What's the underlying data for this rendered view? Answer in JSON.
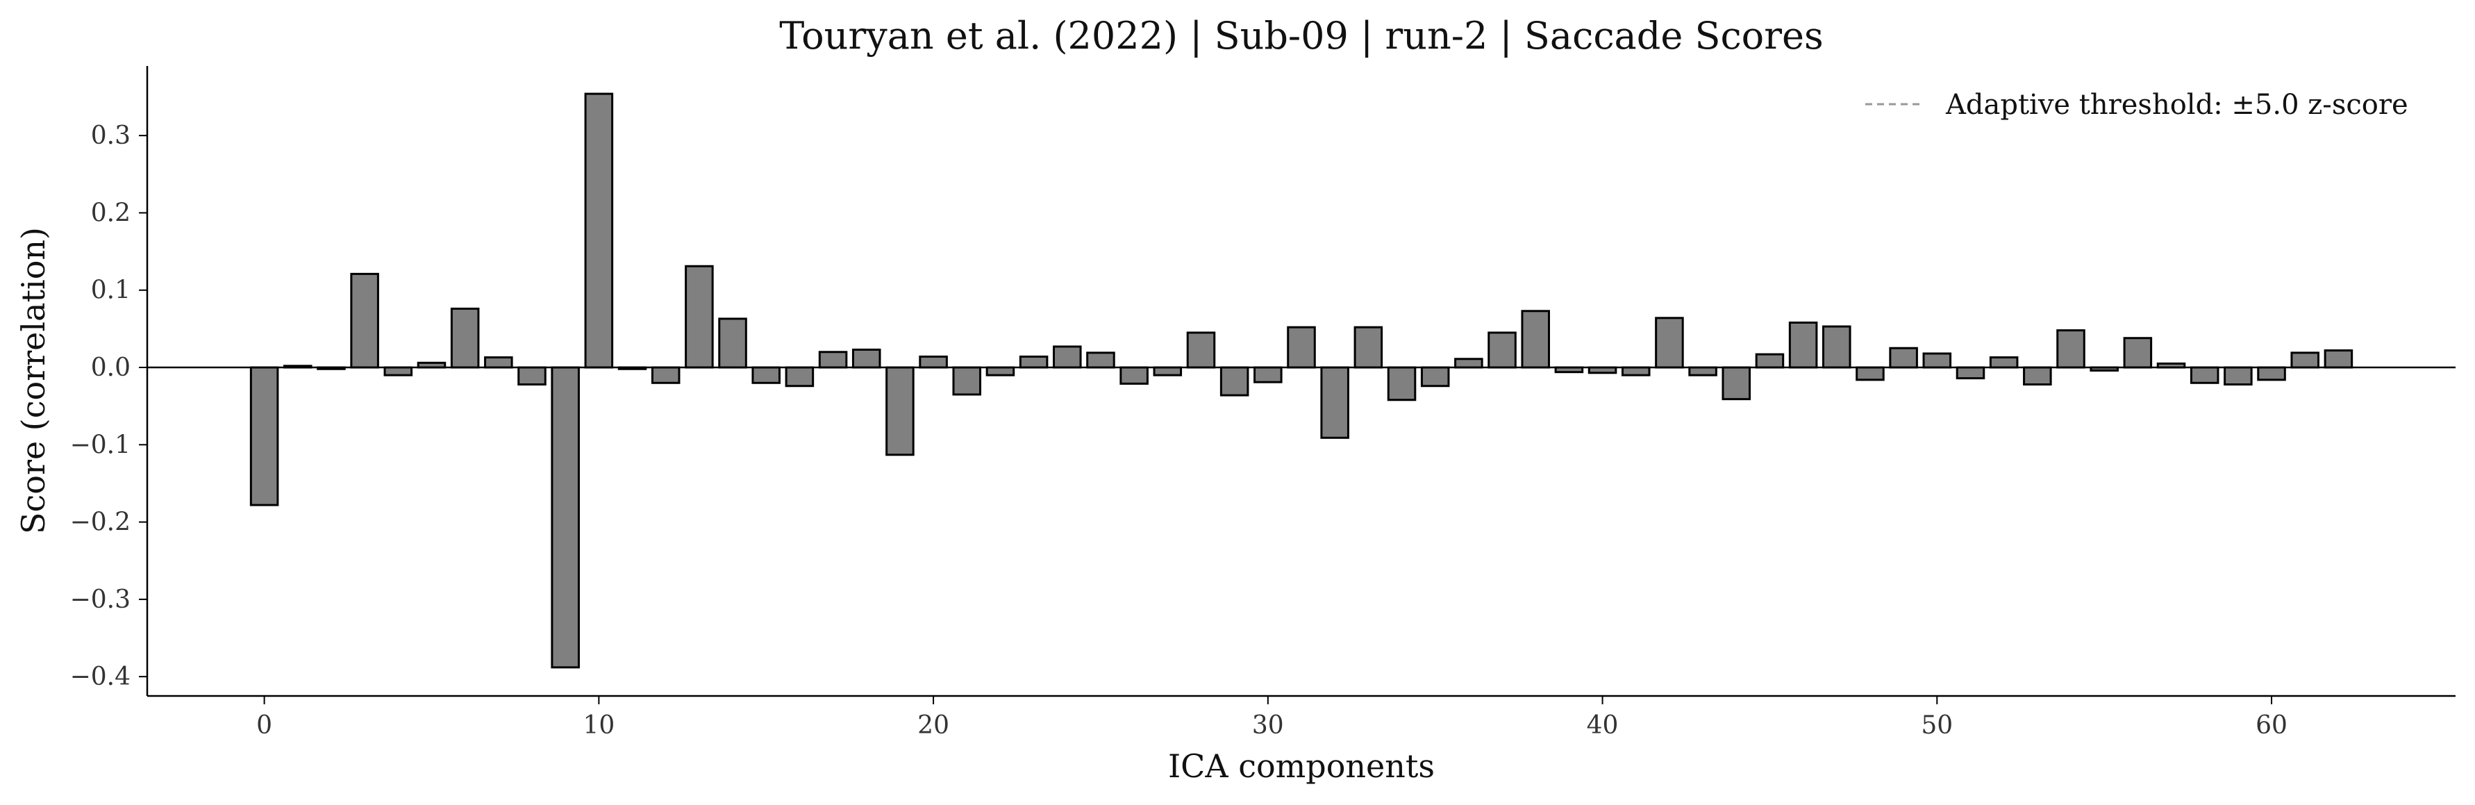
{
  "chart_data": {
    "type": "bar",
    "title": "Touryan et al. (2022) | Sub-09 | run-2 | Saccade Scores",
    "xlabel": "ICA components",
    "ylabel": "Score (correlation)",
    "x": [
      0,
      1,
      2,
      3,
      4,
      5,
      6,
      7,
      8,
      9,
      10,
      11,
      12,
      13,
      14,
      15,
      16,
      17,
      18,
      19,
      20,
      21,
      22,
      23,
      24,
      25,
      26,
      27,
      28,
      29,
      30,
      31,
      32,
      33,
      34,
      35,
      36,
      37,
      38,
      39,
      40,
      41,
      42,
      43,
      44,
      45,
      46,
      47,
      48,
      49,
      50,
      51,
      52,
      53,
      54,
      55,
      56,
      57,
      58,
      59,
      60,
      61,
      62
    ],
    "values": [
      -0.178,
      0.002,
      -0.002,
      0.121,
      -0.01,
      0.006,
      0.076,
      0.013,
      -0.022,
      -0.388,
      0.354,
      -0.002,
      -0.02,
      0.131,
      0.063,
      -0.02,
      -0.024,
      0.02,
      0.023,
      -0.113,
      0.014,
      -0.035,
      -0.01,
      0.014,
      0.027,
      0.019,
      -0.021,
      -0.01,
      0.045,
      -0.036,
      -0.019,
      0.052,
      -0.091,
      0.052,
      -0.042,
      -0.024,
      0.011,
      0.045,
      0.073,
      -0.006,
      -0.007,
      -0.01,
      0.064,
      -0.01,
      -0.041,
      0.017,
      0.058,
      0.053,
      -0.016,
      0.025,
      0.018,
      -0.014,
      0.013,
      -0.022,
      0.048,
      -0.004,
      0.038,
      0.005,
      -0.02,
      -0.022,
      -0.016,
      0.019,
      0.022
    ],
    "xlim": [
      -3.5,
      65.5
    ],
    "ylim": [
      -0.425,
      0.39
    ],
    "xticks": [
      0,
      10,
      20,
      30,
      40,
      50,
      60
    ],
    "yticks": [
      -0.4,
      -0.3,
      -0.2,
      -0.1,
      0.0,
      0.1,
      0.2,
      0.3
    ],
    "ytick_labels": [
      "−0.4",
      "−0.3",
      "−0.2",
      "−0.1",
      "0.0",
      "0.1",
      "0.2",
      "0.3"
    ],
    "bar_color": "#808080",
    "edge_color": "#000000",
    "zero_line": true,
    "grid": false,
    "legend": {
      "position": "top-right",
      "entries": [
        {
          "label": "Adaptive threshold: ±5.0 z-score",
          "style": "dashed",
          "color": "#999999"
        }
      ]
    }
  }
}
